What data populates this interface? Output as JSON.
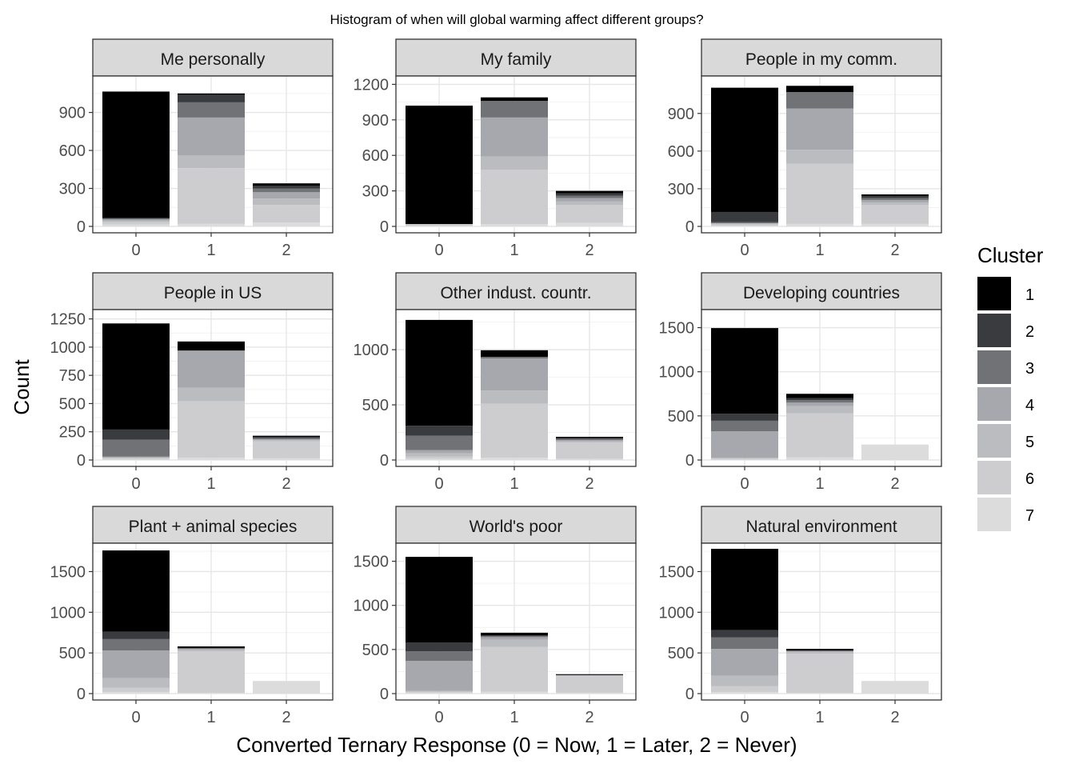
{
  "chart_data": {
    "type": "bar",
    "stacked": true,
    "title": "Histogram of when will global warming affect different groups?",
    "xlabel": "Converted Ternary Response (0 = Now, 1 = Later, 2 = Never)",
    "ylabel": "Count",
    "categories": [
      "0",
      "1",
      "2"
    ],
    "grid": true,
    "legend": {
      "title": "Cluster",
      "position": "right",
      "entries": [
        "1",
        "2",
        "3",
        "4",
        "5",
        "6",
        "7"
      ],
      "colors": [
        "#000000",
        "#3a3b3e",
        "#707276",
        "#a6a8ae",
        "#bbbcc0",
        "#cdcdd0",
        "#dcdcdc"
      ]
    },
    "panels": [
      {
        "name": "Me personally",
        "ylim": [
          0,
          1150
        ],
        "yticks": [
          0,
          300,
          600,
          900
        ],
        "stacks": [
          [
            1000,
            0,
            10,
            10,
            10,
            20,
            15
          ],
          [
            10,
            60,
            120,
            300,
            100,
            440,
            20
          ],
          [
            20,
            20,
            30,
            50,
            50,
            140,
            30
          ]
        ]
      },
      {
        "name": "My family",
        "ylim": [
          0,
          1230
        ],
        "yticks": [
          0,
          300,
          600,
          900,
          1200
        ],
        "stacks": [
          [
            1000,
            0,
            0,
            0,
            0,
            15,
            5
          ],
          [
            30,
            0,
            140,
            330,
            110,
            460,
            20
          ],
          [
            20,
            20,
            20,
            30,
            30,
            150,
            30
          ]
        ]
      },
      {
        "name": "People in my comm.",
        "ylim": [
          0,
          1160
        ],
        "yticks": [
          0,
          300,
          600,
          900
        ],
        "stacks": [
          [
            990,
            80,
            10,
            0,
            10,
            10,
            5
          ],
          [
            50,
            0,
            130,
            330,
            110,
            480,
            20
          ],
          [
            15,
            15,
            15,
            20,
            20,
            150,
            20
          ]
        ]
      },
      {
        "name": "People in US",
        "ylim": [
          0,
          1290
        ],
        "yticks": [
          0,
          250,
          500,
          750,
          1000,
          1250
        ],
        "stacks": [
          [
            940,
            90,
            150,
            10,
            0,
            15,
            5
          ],
          [
            80,
            0,
            0,
            330,
            120,
            500,
            20
          ],
          [
            10,
            10,
            10,
            10,
            10,
            150,
            15
          ]
        ]
      },
      {
        "name": "Other indust. countr.",
        "ylim": [
          0,
          1320
        ],
        "yticks": [
          0,
          500,
          1000
        ],
        "stacks": [
          [
            960,
            90,
            130,
            30,
            30,
            20,
            10
          ],
          [
            60,
            0,
            15,
            290,
            120,
            490,
            20
          ],
          [
            10,
            10,
            10,
            10,
            10,
            150,
            10
          ]
        ]
      },
      {
        "name": "Developing countries",
        "ylim": [
          0,
          1650
        ],
        "yticks": [
          0,
          500,
          1000,
          1500
        ],
        "stacks": [
          [
            970,
            80,
            120,
            300,
            10,
            10,
            5
          ],
          [
            50,
            20,
            30,
            40,
            80,
            500,
            30
          ],
          [
            0,
            0,
            0,
            0,
            0,
            0,
            175
          ]
        ]
      },
      {
        "name": "Plant + animal species",
        "ylim": [
          0,
          1790
        ],
        "yticks": [
          0,
          500,
          1000,
          1500
        ],
        "stacks": [
          [
            1000,
            90,
            140,
            340,
            120,
            50,
            20
          ],
          [
            20,
            0,
            10,
            10,
            20,
            510,
            10
          ],
          [
            0,
            0,
            0,
            0,
            0,
            0,
            155
          ]
        ]
      },
      {
        "name": "World's poor",
        "ylim": [
          0,
          1650
        ],
        "yticks": [
          0,
          500,
          1000,
          1500
        ],
        "stacks": [
          [
            970,
            100,
            110,
            340,
            10,
            10,
            10
          ],
          [
            30,
            10,
            10,
            30,
            80,
            510,
            20
          ],
          [
            10,
            0,
            0,
            0,
            10,
            190,
            10
          ]
        ]
      },
      {
        "name": "Natural environment",
        "ylim": [
          0,
          1790
        ],
        "yticks": [
          0,
          500,
          1000,
          1500
        ],
        "stacks": [
          [
            1000,
            90,
            140,
            330,
            130,
            70,
            20
          ],
          [
            20,
            0,
            10,
            10,
            20,
            480,
            10
          ],
          [
            0,
            0,
            0,
            0,
            0,
            0,
            155
          ]
        ]
      }
    ]
  }
}
